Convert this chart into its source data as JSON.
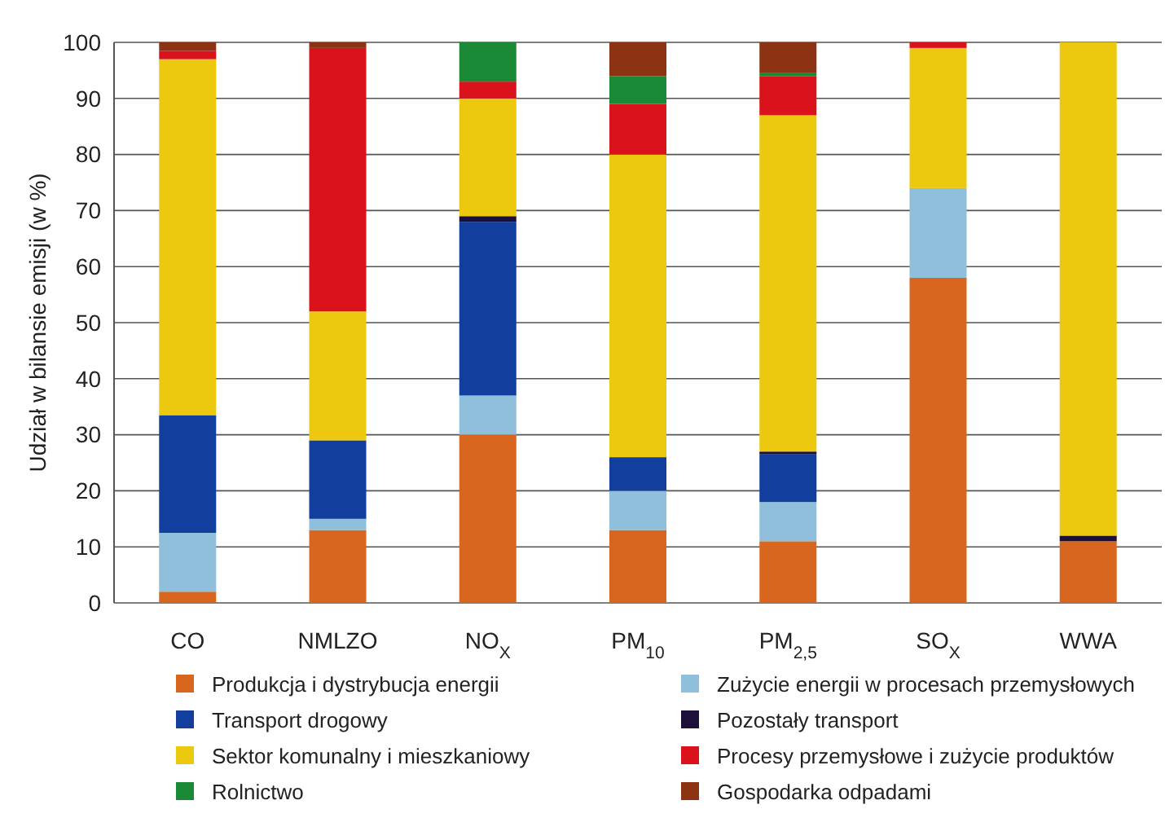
{
  "chart_data": {
    "type": "bar",
    "stacked": true,
    "ylabel": "Udział w bilansie emisji (w %)",
    "categories": [
      "CO",
      "NMLZO",
      "NO$_{X}$",
      "PM$_{10}$",
      "PM$_{2,5}$",
      "SO$_{X}$",
      "WWA"
    ],
    "series": [
      {
        "name": "Produkcja i dystrybucja energii",
        "color": "#d9661e",
        "values": [
          2,
          13,
          30,
          13,
          11,
          58,
          11
        ]
      },
      {
        "name": "Zużycie energii w procesach przemysłowych",
        "color": "#8fbfda",
        "values": [
          10.5,
          2,
          7,
          7,
          7,
          16,
          0
        ]
      },
      {
        "name": "Transport drogowy",
        "color": "#123f9e",
        "values": [
          21,
          14,
          31,
          6,
          8.5,
          0,
          0
        ]
      },
      {
        "name": "Pozostały transport",
        "color": "#1c0f3a",
        "values": [
          0,
          0,
          1,
          0,
          0.5,
          0,
          1
        ]
      },
      {
        "name": "Sektor komunalny i mieszkaniowy",
        "color": "#ecc80f",
        "values": [
          63.5,
          23,
          21,
          54,
          60,
          25,
          88
        ]
      },
      {
        "name": "Procesy przemysłowe i zużycie produktów",
        "color": "#d9121c",
        "values": [
          1.5,
          47,
          3,
          9,
          7,
          1,
          0
        ]
      },
      {
        "name": "Rolnictwo",
        "color": "#1b8a37",
        "values": [
          0,
          0,
          7,
          5,
          0.5,
          0,
          0
        ]
      },
      {
        "name": "Gospodarka odpadami",
        "color": "#8b3312",
        "values": [
          1.5,
          1,
          0,
          6,
          5.5,
          0,
          0
        ]
      }
    ],
    "ylim": [
      0,
      100
    ],
    "yticks": [
      0,
      10,
      20,
      30,
      40,
      50,
      60,
      70,
      80,
      90,
      100
    ],
    "grid": "y",
    "legend": "bottom"
  }
}
